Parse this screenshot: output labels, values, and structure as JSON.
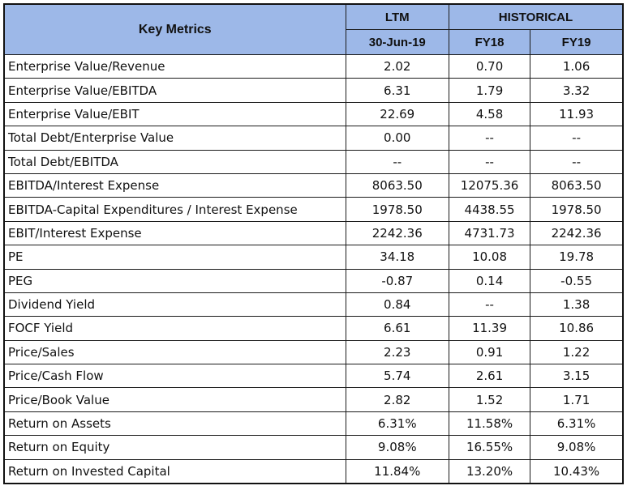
{
  "header": {
    "key_metrics": "Key Metrics",
    "ltm": "LTM",
    "historical": "HISTORICAL",
    "ltm_date": "30-Jun-19",
    "fy18": "FY18",
    "fy19": "FY19"
  },
  "colors": {
    "header_bg": "#9db8e8",
    "border": "#1a1a1a"
  },
  "rows": [
    {
      "metric": "Enterprise Value/Revenue",
      "ltm": "2.02",
      "fy18": "0.70",
      "fy19": "1.06"
    },
    {
      "metric": "Enterprise Value/EBITDA",
      "ltm": "6.31",
      "fy18": "1.79",
      "fy19": "3.32"
    },
    {
      "metric": "Enterprise Value/EBIT",
      "ltm": "22.69",
      "fy18": "4.58",
      "fy19": "11.93"
    },
    {
      "metric": "Total Debt/Enterprise Value",
      "ltm": "0.00",
      "fy18": "--",
      "fy19": "--"
    },
    {
      "metric": "Total Debt/EBITDA",
      "ltm": "--",
      "fy18": "--",
      "fy19": "--"
    },
    {
      "metric": "EBITDA/Interest Expense",
      "ltm": "8063.50",
      "fy18": "12075.36",
      "fy19": "8063.50"
    },
    {
      "metric": "EBITDA-Capital Expenditures / Interest Expense",
      "ltm": "1978.50",
      "fy18": "4438.55",
      "fy19": "1978.50"
    },
    {
      "metric": "EBIT/Interest Expense",
      "ltm": "2242.36",
      "fy18": "4731.73",
      "fy19": "2242.36"
    },
    {
      "metric": "PE",
      "ltm": "34.18",
      "fy18": "10.08",
      "fy19": "19.78"
    },
    {
      "metric": "PEG",
      "ltm": "-0.87",
      "fy18": "0.14",
      "fy19": "-0.55"
    },
    {
      "metric": "Dividend Yield",
      "ltm": "0.84",
      "fy18": "--",
      "fy19": "1.38"
    },
    {
      "metric": "FOCF Yield",
      "ltm": "6.61",
      "fy18": "11.39",
      "fy19": "10.86"
    },
    {
      "metric": "Price/Sales",
      "ltm": "2.23",
      "fy18": "0.91",
      "fy19": "1.22"
    },
    {
      "metric": "Price/Cash Flow",
      "ltm": "5.74",
      "fy18": "2.61",
      "fy19": "3.15"
    },
    {
      "metric": "Price/Book Value",
      "ltm": "2.82",
      "fy18": "1.52",
      "fy19": "1.71"
    },
    {
      "metric": "Return on Assets",
      "ltm": "6.31%",
      "fy18": "11.58%",
      "fy19": "6.31%"
    },
    {
      "metric": "Return on Equity",
      "ltm": "9.08%",
      "fy18": "16.55%",
      "fy19": "9.08%"
    },
    {
      "metric": "Return on Invested Capital",
      "ltm": "11.84%",
      "fy18": "13.20%",
      "fy19": "10.43%"
    }
  ]
}
